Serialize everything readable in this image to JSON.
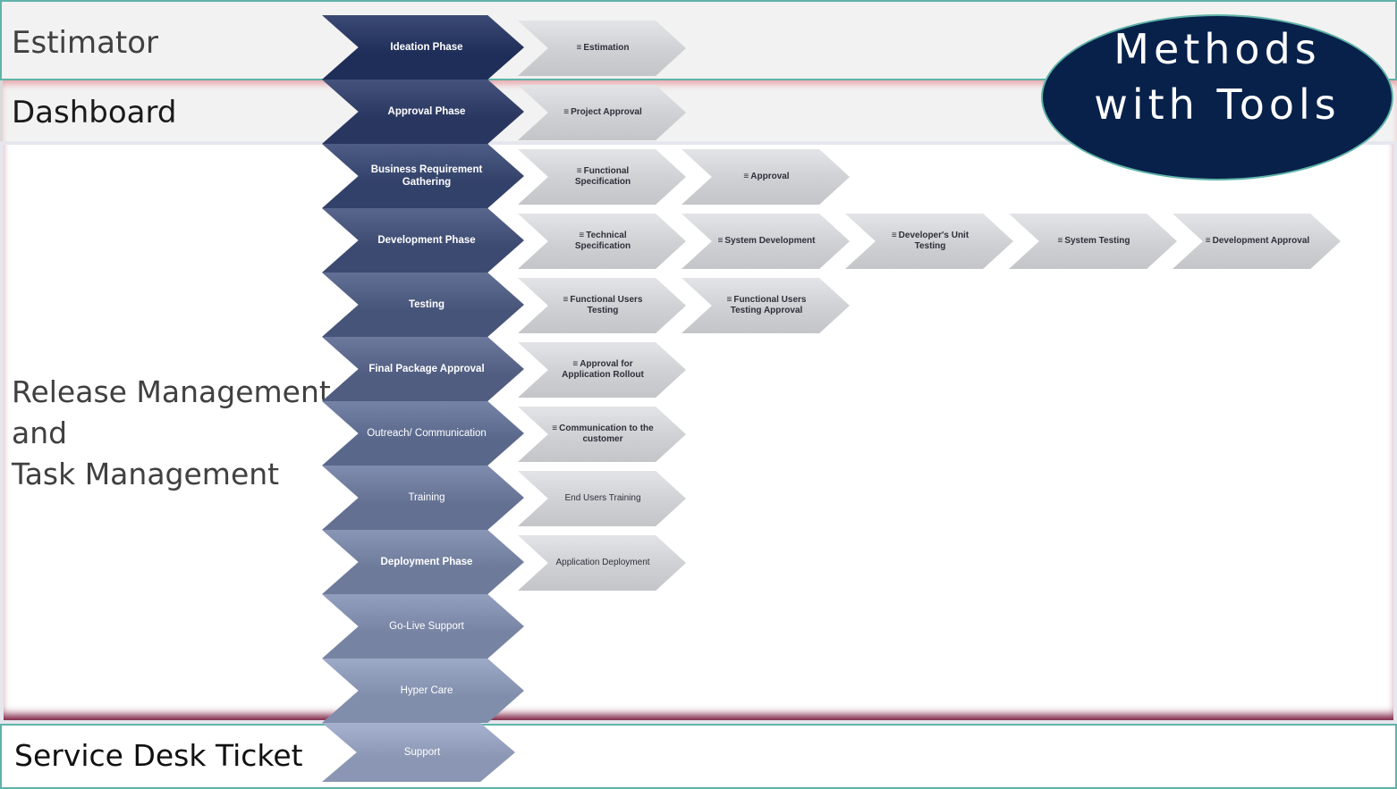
{
  "bands": {
    "estimator": "Estimator",
    "dashboard": "Dashboard",
    "release_lines": [
      "Release Management",
      "and",
      "Task Management"
    ],
    "service": "Service Desk Ticket"
  },
  "methods": {
    "line1": "Methods",
    "line2": "with Tools"
  },
  "task_icon": "≡",
  "colors": {
    "phase_dark": "#1f2e58",
    "phase_light": "#8a96b3",
    "task_grey": "#cfd0d4",
    "ellipse": "#08214a",
    "accent_teal": "#5fb3a8"
  },
  "rows": [
    {
      "phase": "Ideation Phase",
      "tasks": [
        {
          "label": "Estimation",
          "icon": true
        }
      ]
    },
    {
      "phase": "Approval Phase",
      "tasks": [
        {
          "label": "Project Approval",
          "icon": true
        }
      ]
    },
    {
      "phase": "Business Requirement Gathering",
      "tasks": [
        {
          "label": "Functional Specification",
          "icon": true
        },
        {
          "label": "Approval",
          "icon": true
        }
      ]
    },
    {
      "phase": "Development Phase",
      "tasks": [
        {
          "label": "Technical Specification",
          "icon": true
        },
        {
          "label": "System Development",
          "icon": true
        },
        {
          "label": "Developer's Unit Testing",
          "icon": true
        },
        {
          "label": "System Testing",
          "icon": true
        },
        {
          "label": "Development Approval",
          "icon": true
        }
      ]
    },
    {
      "phase": "Testing",
      "tasks": [
        {
          "label": "Functional Users Testing",
          "icon": true
        },
        {
          "label": "Functional Users Testing Approval",
          "icon": true
        }
      ]
    },
    {
      "phase": "Final Package Approval",
      "tasks": [
        {
          "label": "Approval for Application Rollout",
          "icon": true
        }
      ]
    },
    {
      "phase": "Outreach/ Communication",
      "tasks": [
        {
          "label": "Communication to the customer",
          "icon": true
        }
      ]
    },
    {
      "phase": "Training",
      "tasks": [
        {
          "label": "End Users Training",
          "icon": false
        }
      ]
    },
    {
      "phase": "Deployment Phase",
      "tasks": [
        {
          "label": "Application Deployment",
          "icon": false
        }
      ]
    },
    {
      "phase": "Go-Live Support",
      "tasks": []
    },
    {
      "phase": "Hyper Care",
      "tasks": []
    },
    {
      "phase": "Support",
      "tasks": []
    }
  ]
}
